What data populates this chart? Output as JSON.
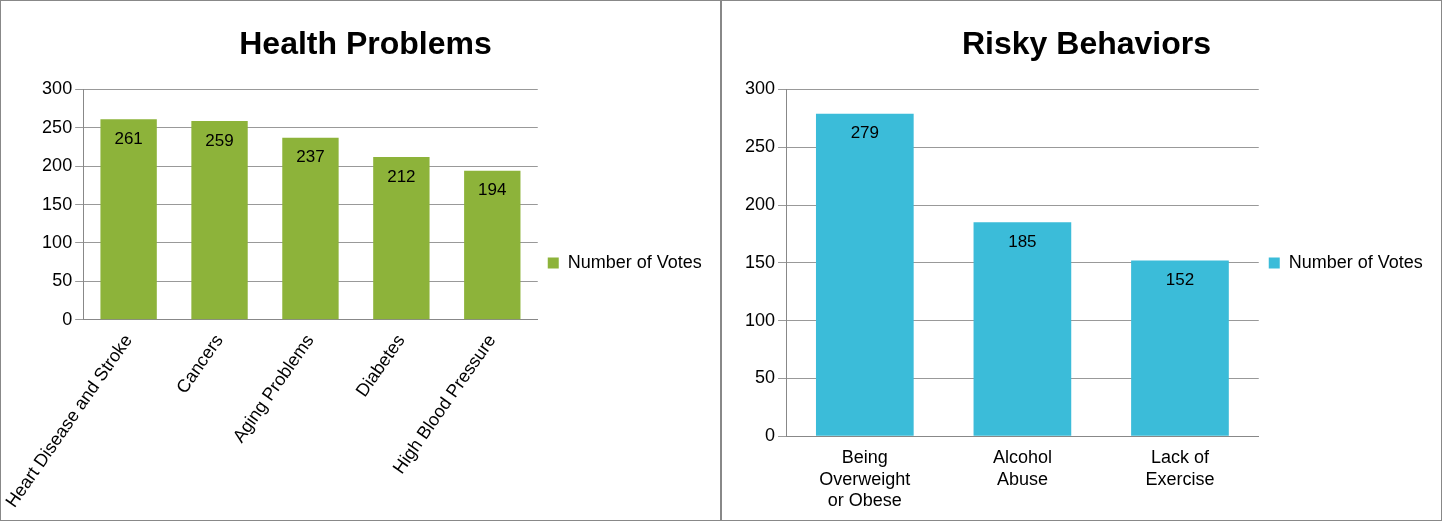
{
  "chart_data": [
    {
      "type": "bar",
      "title": "Health Problems",
      "categories": [
        "Heart Disease and Stroke",
        "Cancers",
        "Aging Problems",
        "Diabetes",
        "High Blood Pressure"
      ],
      "series": [
        {
          "name": "Number of Votes",
          "color": "#8db33a",
          "values": [
            261,
            259,
            237,
            212,
            194
          ]
        }
      ],
      "ylim": [
        0,
        300
      ],
      "yticks": [
        0,
        50,
        100,
        150,
        200,
        250,
        300
      ],
      "grid": "y",
      "legend": "right",
      "data_labels": true
    },
    {
      "type": "bar",
      "title": "Risky Behaviors",
      "categories": [
        "Being Overweight or Obese",
        "Alcohol Abuse",
        "Lack of Exercise"
      ],
      "series": [
        {
          "name": "Number of Votes",
          "color": "#3bbcd9",
          "values": [
            279,
            185,
            152
          ]
        }
      ],
      "ylim": [
        0,
        300
      ],
      "yticks": [
        0,
        50,
        100,
        150,
        200,
        250,
        300
      ],
      "grid": "y",
      "legend": "right",
      "data_labels": true
    }
  ]
}
